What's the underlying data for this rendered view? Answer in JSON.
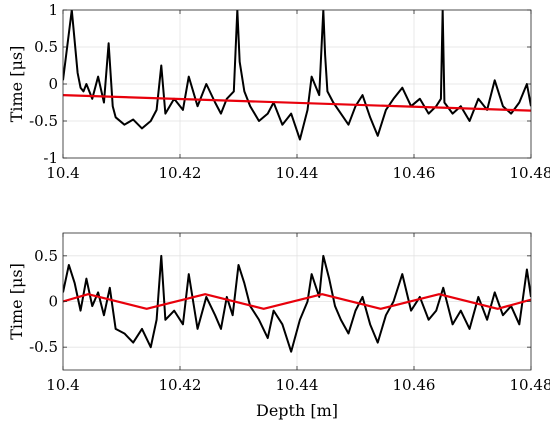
{
  "chart_data": [
    {
      "type": "line",
      "ylabel": "Time [μs]",
      "xlabel": "",
      "xlim": [
        10.4,
        10.48
      ],
      "ylim": [
        -1,
        1
      ],
      "xticks": [
        10.4,
        10.42,
        10.44,
        10.46,
        10.48
      ],
      "xtick_labels": [
        "10.4",
        "10.42",
        "10.44",
        "10.46",
        "10.48"
      ],
      "yticks": [
        -1,
        -0.5,
        0,
        0.5,
        1
      ],
      "ytick_labels": [
        "-1",
        "-0.5",
        "0",
        "0.5",
        "1"
      ],
      "grid": true,
      "series": [
        {
          "color": "#000000",
          "x": [
            10.4,
            10.4015,
            10.4025,
            10.403,
            10.4035,
            10.404,
            10.405,
            10.406,
            10.407,
            10.4078,
            10.4085,
            10.409,
            10.4105,
            10.412,
            10.4135,
            10.415,
            10.416,
            10.4168,
            10.4175,
            10.419,
            10.4205,
            10.4215,
            10.423,
            10.4245,
            10.426,
            10.427,
            10.428,
            10.4292,
            10.4298,
            10.4302,
            10.431,
            10.432,
            10.4335,
            10.435,
            10.436,
            10.4375,
            10.439,
            10.4405,
            10.4418,
            10.4425,
            10.4438,
            10.4445,
            10.4448,
            10.4452,
            10.4462,
            10.4475,
            10.4488,
            10.45,
            10.4512,
            10.4525,
            10.4538,
            10.4552,
            10.4565,
            10.458,
            10.4595,
            10.461,
            10.4625,
            10.4638,
            10.4646,
            10.4649,
            10.4652,
            10.4666,
            10.468,
            10.4695,
            10.471,
            10.4725,
            10.4738,
            10.4752,
            10.4766,
            10.478,
            10.4793,
            10.48
          ],
          "y": [
            0.05,
            1.0,
            0.15,
            -0.05,
            -0.1,
            0.0,
            -0.2,
            0.1,
            -0.25,
            0.55,
            -0.3,
            -0.45,
            -0.55,
            -0.48,
            -0.6,
            -0.5,
            -0.35,
            0.25,
            -0.4,
            -0.2,
            -0.35,
            0.1,
            -0.3,
            0.0,
            -0.25,
            -0.4,
            -0.2,
            -0.1,
            1.0,
            0.3,
            -0.1,
            -0.3,
            -0.5,
            -0.4,
            -0.25,
            -0.55,
            -0.4,
            -0.75,
            -0.35,
            0.1,
            -0.15,
            1.0,
            0.4,
            -0.1,
            -0.25,
            -0.4,
            -0.55,
            -0.3,
            -0.15,
            -0.45,
            -0.7,
            -0.35,
            -0.2,
            -0.05,
            -0.3,
            -0.2,
            -0.4,
            -0.3,
            -0.2,
            1.0,
            -0.25,
            -0.4,
            -0.3,
            -0.5,
            -0.2,
            -0.35,
            0.05,
            -0.3,
            -0.4,
            -0.25,
            0.0,
            -0.3
          ]
        },
        {
          "color": "#e8000b",
          "x": [
            10.4,
            10.48
          ],
          "y": [
            -0.15,
            -0.36
          ]
        }
      ]
    },
    {
      "type": "line",
      "ylabel": "Time [μs]",
      "xlabel": "Depth [m]",
      "xlim": [
        10.4,
        10.48
      ],
      "ylim": [
        -0.75,
        0.75
      ],
      "xticks": [
        10.4,
        10.42,
        10.44,
        10.46,
        10.48
      ],
      "xtick_labels": [
        "10.4",
        "10.42",
        "10.44",
        "10.46",
        "10.48"
      ],
      "yticks": [
        -0.5,
        0,
        0.5
      ],
      "ytick_labels": [
        "-0.5",
        "0",
        "0.5"
      ],
      "grid": true,
      "series": [
        {
          "color": "#000000",
          "x": [
            10.4,
            10.401,
            10.402,
            10.403,
            10.404,
            10.405,
            10.406,
            10.407,
            10.408,
            10.409,
            10.4105,
            10.412,
            10.4135,
            10.415,
            10.416,
            10.4168,
            10.4175,
            10.419,
            10.4205,
            10.4215,
            10.423,
            10.4245,
            10.426,
            10.427,
            10.428,
            10.429,
            10.43,
            10.431,
            10.432,
            10.4335,
            10.435,
            10.436,
            10.4375,
            10.439,
            10.4405,
            10.4418,
            10.4425,
            10.4438,
            10.4445,
            10.4455,
            10.4465,
            10.4475,
            10.4488,
            10.45,
            10.4512,
            10.4525,
            10.4538,
            10.4552,
            10.4565,
            10.458,
            10.4595,
            10.461,
            10.4625,
            10.4638,
            10.465,
            10.4666,
            10.468,
            10.4695,
            10.471,
            10.4725,
            10.4738,
            10.4752,
            10.4766,
            10.478,
            10.4793,
            10.48
          ],
          "y": [
            0.1,
            0.4,
            0.2,
            -0.1,
            0.25,
            -0.05,
            0.1,
            -0.15,
            0.15,
            -0.3,
            -0.35,
            -0.45,
            -0.3,
            -0.5,
            -0.2,
            0.5,
            -0.2,
            -0.1,
            -0.25,
            0.3,
            -0.3,
            0.05,
            -0.15,
            -0.3,
            0.05,
            -0.15,
            0.4,
            0.2,
            -0.05,
            -0.2,
            -0.4,
            -0.1,
            -0.25,
            -0.55,
            -0.2,
            0.0,
            0.3,
            0.05,
            0.5,
            0.25,
            -0.05,
            -0.2,
            -0.35,
            -0.1,
            0.05,
            -0.25,
            -0.45,
            -0.15,
            0.0,
            0.3,
            -0.1,
            0.05,
            -0.2,
            -0.1,
            0.15,
            -0.25,
            -0.1,
            -0.3,
            0.05,
            -0.2,
            0.1,
            -0.15,
            -0.05,
            -0.25,
            0.35,
            0.05
          ]
        },
        {
          "color": "#e8000b",
          "x": [
            10.4,
            10.4043,
            10.4143,
            10.4243,
            10.4343,
            10.4443,
            10.4543,
            10.4643,
            10.4743,
            10.48
          ],
          "y": [
            0.0,
            0.08,
            -0.08,
            0.08,
            -0.08,
            0.08,
            -0.08,
            0.08,
            -0.08,
            0.02
          ]
        }
      ]
    }
  ]
}
